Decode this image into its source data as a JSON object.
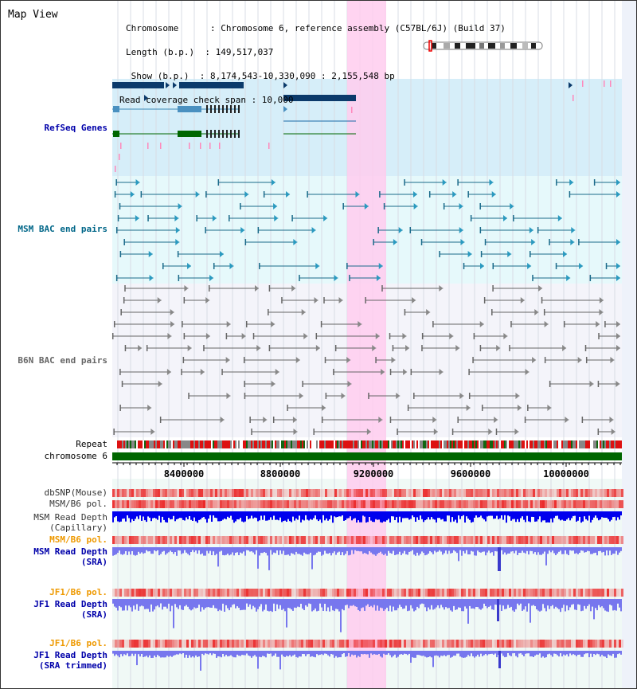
{
  "app": {
    "title": "Map View"
  },
  "header": {
    "chromosome_line": "Chromosome      : Chromosome 6, reference assembly (C57BL/6J) (Build 37)",
    "length_line": "Length (b.p.)  : 149,517,037",
    "show_line": " Show (b.p.)  : 8,174,543-10,330,090 : 2,155,548 bp",
    "span_line": "Read coverage check span : 10,000"
  },
  "tracks": {
    "refseq": "RefSeq Genes",
    "msm_bac": "MSM BAC end pairs",
    "b6n_bac": "B6N BAC end pairs",
    "repeat": "Repeat",
    "chromosome": "chromosome 6",
    "dbsnp": "dbSNP(Mouse)",
    "msm_b6_pol": "MSM/B6 pol.",
    "msm_depth_cap_1": "MSM Read Depth",
    "msm_depth_cap_2": "(Capillary)",
    "msm_b6_pol_sra": "MSM/B6 pol.",
    "msm_depth_sra_1": "MSM Read Depth",
    "msm_depth_sra_2": "(SRA)",
    "jf1_b6_pol": "JF1/B6 pol.",
    "jf1_depth_sra_1": "JF1 Read Depth",
    "jf1_depth_sra_2": "(SRA)",
    "jf1_b6_pol_trim": "JF1/B6 pol.",
    "jf1_depth_trim_1": "JF1 Read Depth",
    "jf1_depth_trim_2": "(SRA trimmed)"
  },
  "axis": {
    "ticks": [
      "8400000",
      "8800000",
      "9200000",
      "9600000",
      "10000000"
    ]
  },
  "colors": {
    "refseq_label": "#0000aa",
    "msm_bac_label": "#006688",
    "b6n_bac_label": "#666666",
    "sra_msm_label": "#0000aa",
    "pol_orange": "#ee9900",
    "highlight": "#ffccee",
    "chromosome_bar": "#006600",
    "depth_blue": "#0000ee",
    "depth_lightblue": "#7777ee"
  },
  "icons": [
    "chromosome-ideogram-icon",
    "gene-arrow-icon",
    "bac-pair-icon"
  ]
}
